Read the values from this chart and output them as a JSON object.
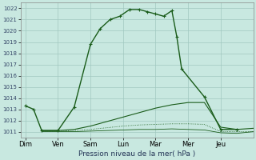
{
  "background_color": "#c8e8e0",
  "grid_color": "#a0c8c0",
  "line_color": "#1a5c1a",
  "xlabel": "Pression niveau de la mer( hPa )",
  "ylim": [
    1010.5,
    1022.5
  ],
  "yticks": [
    1011,
    1012,
    1013,
    1014,
    1015,
    1016,
    1017,
    1018,
    1019,
    1020,
    1021,
    1022
  ],
  "xtick_labels": [
    "Dim",
    "Ven",
    "Sam",
    "Lun",
    "Mar",
    "Mer",
    "Jeu"
  ],
  "xtick_positions": [
    0,
    1,
    2,
    3,
    4,
    5,
    6
  ],
  "xlim": [
    -0.15,
    7.0
  ],
  "s1_x": [
    0.0,
    0.25,
    0.5,
    1.0,
    1.5,
    2.0,
    2.3,
    2.6,
    2.9,
    3.2,
    3.5,
    3.75,
    4.0,
    4.25,
    4.5,
    4.65,
    4.8,
    5.5,
    6.0,
    6.5
  ],
  "s1_y": [
    1013.3,
    1013.0,
    1011.1,
    1011.1,
    1013.2,
    1018.8,
    1020.2,
    1021.0,
    1021.3,
    1021.9,
    1021.9,
    1021.7,
    1021.5,
    1021.3,
    1021.8,
    1019.5,
    1016.6,
    1014.1,
    1011.2,
    1011.2
  ],
  "s2_x": [
    0.5,
    1.0,
    1.5,
    2.0,
    2.5,
    3.0,
    3.5,
    4.0,
    4.5,
    5.0,
    5.5,
    6.0,
    6.5,
    7.0
  ],
  "s2_y": [
    1011.1,
    1011.1,
    1011.2,
    1011.5,
    1011.9,
    1012.3,
    1012.7,
    1013.1,
    1013.4,
    1013.6,
    1013.6,
    1011.4,
    1011.2,
    1011.3
  ],
  "s3_x": [
    0.5,
    1.0,
    1.5,
    2.0,
    2.5,
    3.0,
    3.5,
    4.0,
    4.5,
    5.0,
    5.5,
    6.0,
    6.5,
    7.0
  ],
  "s3_y": [
    1011.05,
    1011.05,
    1011.1,
    1011.2,
    1011.35,
    1011.5,
    1011.6,
    1011.65,
    1011.7,
    1011.7,
    1011.65,
    1011.0,
    1011.0,
    1011.0
  ],
  "s4_x": [
    0.5,
    1.0,
    1.5,
    2.0,
    2.5,
    3.0,
    3.5,
    4.0,
    4.5,
    5.0,
    5.5,
    6.0,
    6.5,
    7.0
  ],
  "s4_y": [
    1011.0,
    1011.0,
    1011.0,
    1011.05,
    1011.1,
    1011.15,
    1011.2,
    1011.2,
    1011.25,
    1011.2,
    1011.15,
    1010.9,
    1010.85,
    1011.0
  ]
}
